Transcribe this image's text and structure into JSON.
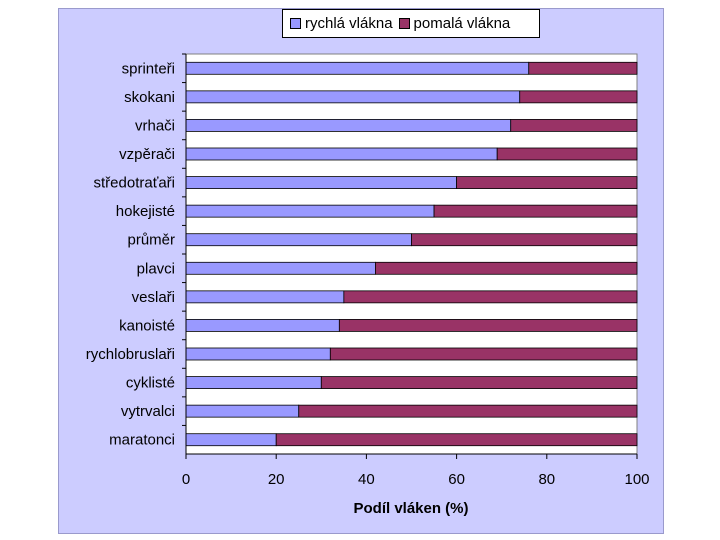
{
  "chart_data": {
    "type": "bar",
    "orientation": "horizontal",
    "stacked": true,
    "categories": [
      "sprinteři",
      "skokani",
      "vrhači",
      "vzpěrači",
      "středotraťaři",
      "hokejisté",
      "průměr",
      "plavci",
      "veslaři",
      "kanoisté",
      "rychlobruslaři",
      "cyklisté",
      "vytrvalci",
      "maratonci"
    ],
    "series": [
      {
        "name": "rychlá vlákna",
        "color": "#9999ff",
        "values": [
          76,
          74,
          72,
          69,
          60,
          55,
          50,
          42,
          35,
          34,
          32,
          30,
          25,
          20
        ]
      },
      {
        "name": "pomalá vlákna",
        "color": "#993366",
        "values": [
          24,
          26,
          28,
          31,
          40,
          45,
          50,
          58,
          65,
          66,
          68,
          70,
          75,
          80
        ]
      }
    ],
    "xlabel": "Podíl vláken (%)",
    "ylabel": "",
    "title": "",
    "xlim": [
      0,
      100
    ],
    "xticks": [
      "0",
      "20",
      "40",
      "60",
      "80",
      "100"
    ],
    "grid": false,
    "legend_position": "top"
  }
}
